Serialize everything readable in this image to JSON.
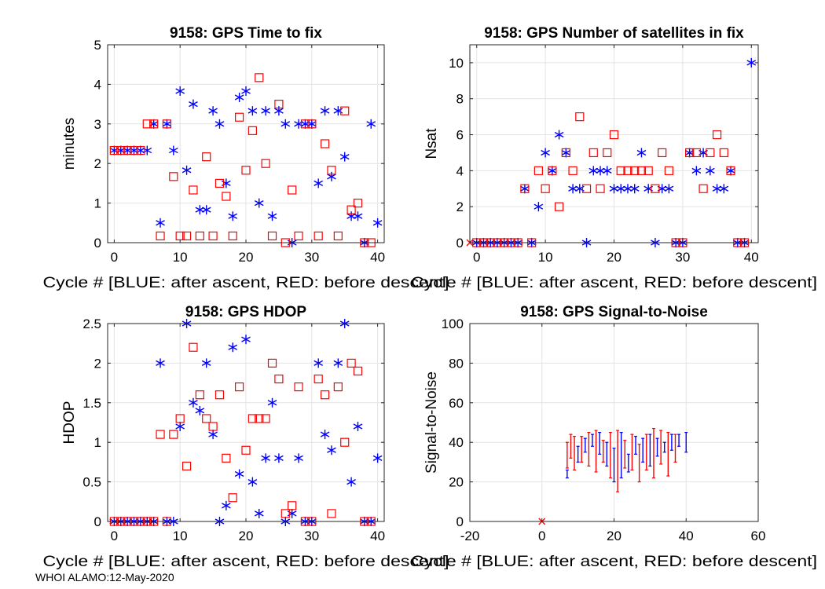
{
  "chart_data": [
    {
      "type": "scatter",
      "title": "9158: GPS Time to fix",
      "xlabel": "Cycle #  [BLUE: after ascent, RED: before descent]",
      "ylabel": "minutes",
      "xlim": [
        -1,
        41
      ],
      "ylim": [
        0,
        5
      ],
      "xticks": [
        0,
        10,
        20,
        30,
        40
      ],
      "yticks": [
        0,
        1,
        2,
        3,
        4,
        5
      ],
      "grid": true,
      "series": [
        {
          "name": "after ascent",
          "color": "#0000ff",
          "marker": "star",
          "x": [
            0,
            1,
            2,
            3,
            4,
            5,
            6,
            7,
            8,
            9,
            10,
            11,
            12,
            13,
            14,
            15,
            16,
            17,
            18,
            19,
            20,
            21,
            22,
            23,
            24,
            25,
            26,
            27,
            28,
            29,
            30,
            31,
            32,
            33,
            34,
            35,
            36,
            37,
            38,
            39,
            40
          ],
          "y": [
            2.33,
            2.33,
            2.33,
            2.33,
            2.33,
            2.33,
            3.0,
            0.5,
            3.0,
            2.33,
            3.83,
            1.83,
            3.5,
            0.83,
            0.83,
            3.33,
            3.0,
            1.5,
            0.67,
            3.67,
            3.83,
            3.33,
            1.0,
            3.33,
            0.67,
            3.33,
            3.0,
            0,
            3.0,
            3.0,
            3.0,
            1.5,
            3.33,
            1.67,
            3.33,
            2.17,
            0.67,
            0.67,
            0,
            3.0,
            0.5
          ]
        },
        {
          "name": "before descent",
          "color": "#ff0000",
          "marker": "square",
          "x": [
            0,
            1,
            2,
            3,
            4,
            5,
            6,
            7,
            8,
            9,
            10,
            11,
            12,
            13,
            14,
            15,
            16,
            17,
            18,
            19,
            20,
            21,
            22,
            23,
            24,
            25,
            26,
            27,
            28,
            29,
            30,
            31,
            32,
            33,
            34,
            35,
            36,
            37,
            38,
            39
          ],
          "y": [
            2.33,
            2.33,
            2.33,
            2.33,
            2.33,
            3.0,
            3.0,
            0.17,
            3.0,
            1.67,
            0.17,
            0.17,
            1.33,
            0.17,
            2.17,
            0.17,
            1.5,
            1.17,
            0.17,
            3.17,
            1.83,
            2.83,
            4.17,
            2.0,
            0.17,
            3.5,
            0,
            1.33,
            0.17,
            3.0,
            3.0,
            0.17,
            2.5,
            1.83,
            0.17,
            3.33,
            0.83,
            1.0,
            0,
            0
          ]
        }
      ]
    },
    {
      "type": "scatter",
      "title": "9158: GPS Number of satellites in fix",
      "xlabel": "Cycle #  [BLUE: after ascent, RED: before descent]",
      "ylabel": "Nsat",
      "xlim": [
        -1,
        41
      ],
      "ylim": [
        0,
        11
      ],
      "xticks": [
        0,
        10,
        20,
        30,
        40
      ],
      "yticks": [
        0,
        2,
        4,
        6,
        8,
        10
      ],
      "grid": true,
      "series": [
        {
          "name": "after ascent",
          "color": "#0000ff",
          "marker": "star",
          "x": [
            0,
            1,
            2,
            3,
            4,
            5,
            6,
            7,
            8,
            9,
            10,
            11,
            12,
            13,
            14,
            15,
            16,
            17,
            18,
            19,
            20,
            21,
            22,
            23,
            24,
            25,
            26,
            27,
            28,
            29,
            30,
            31,
            32,
            33,
            34,
            35,
            36,
            37,
            38,
            39,
            40
          ],
          "y": [
            0,
            0,
            0,
            0,
            0,
            0,
            0,
            3,
            0,
            2,
            5,
            4,
            6,
            5,
            3,
            3,
            0,
            4,
            4,
            4,
            3,
            3,
            3,
            3,
            5,
            3,
            0,
            3,
            3,
            0,
            0,
            5,
            4,
            5,
            4,
            3,
            3,
            4,
            0,
            0,
            10
          ]
        },
        {
          "name": "before descent",
          "color": "#ff0000",
          "marker": "square",
          "x": [
            0,
            1,
            2,
            3,
            4,
            5,
            6,
            7,
            8,
            9,
            10,
            11,
            12,
            13,
            14,
            15,
            16,
            17,
            18,
            19,
            20,
            21,
            22,
            23,
            24,
            25,
            26,
            27,
            28,
            29,
            30,
            31,
            32,
            33,
            34,
            35,
            36,
            37,
            38,
            39
          ],
          "y": [
            0,
            0,
            0,
            0,
            0,
            0,
            0,
            3,
            0,
            4,
            3,
            4,
            2,
            5,
            4,
            7,
            3,
            5,
            3,
            5,
            6,
            4,
            4,
            4,
            4,
            4,
            3,
            5,
            4,
            0,
            0,
            5,
            5,
            3,
            5,
            6,
            5,
            4,
            0,
            0
          ]
        },
        {
          "name": "invalid",
          "color": "#ff0000",
          "marker": "x",
          "x": [
            -1
          ],
          "y": [
            0
          ]
        }
      ]
    },
    {
      "type": "scatter",
      "title": "9158: GPS HDOP",
      "xlabel": "Cycle #  [BLUE: after ascent, RED: before descent]",
      "ylabel": "HDOP",
      "xlim": [
        -1,
        41
      ],
      "ylim": [
        0,
        2.5
      ],
      "xticks": [
        0,
        10,
        20,
        30,
        40
      ],
      "yticks": [
        0,
        0.5,
        1,
        1.5,
        2,
        2.5
      ],
      "yticklabels": [
        "0",
        "0.5",
        "1",
        "1.5",
        "2",
        "2.5"
      ],
      "grid": true,
      "series": [
        {
          "name": "after ascent",
          "color": "#0000ff",
          "marker": "star",
          "x": [
            0,
            1,
            2,
            3,
            4,
            5,
            6,
            7,
            8,
            9,
            10,
            11,
            12,
            13,
            14,
            15,
            16,
            17,
            18,
            19,
            20,
            21,
            22,
            23,
            24,
            25,
            26,
            27,
            28,
            29,
            30,
            31,
            32,
            33,
            34,
            35,
            36,
            37,
            38,
            39,
            40
          ],
          "y": [
            0,
            0,
            0,
            0,
            0,
            0,
            0,
            2.0,
            0,
            0,
            1.2,
            2.5,
            1.5,
            1.4,
            2.0,
            1.1,
            0,
            0.2,
            2.2,
            0.6,
            2.3,
            0.5,
            0.1,
            0.8,
            1.5,
            0.8,
            0,
            0.1,
            0.8,
            0,
            0,
            2.0,
            1.1,
            0.9,
            2.0,
            2.5,
            0.5,
            1.2,
            0,
            0,
            0.8
          ]
        },
        {
          "name": "before descent",
          "color": "#ff0000",
          "marker": "square",
          "x": [
            0,
            1,
            2,
            3,
            4,
            5,
            6,
            7,
            8,
            9,
            10,
            11,
            12,
            13,
            14,
            15,
            16,
            17,
            18,
            19,
            20,
            21,
            22,
            23,
            24,
            25,
            26,
            27,
            28,
            29,
            30,
            31,
            32,
            33,
            34,
            35,
            36,
            37,
            38,
            39
          ],
          "y": [
            0,
            0,
            0,
            0,
            0,
            0,
            0,
            1.1,
            0,
            1.1,
            1.3,
            0.7,
            2.2,
            1.6,
            1.3,
            1.2,
            1.6,
            0.8,
            0.3,
            1.7,
            0.9,
            1.3,
            1.3,
            1.3,
            2.0,
            1.8,
            0.1,
            0.2,
            1.7,
            0,
            0,
            1.8,
            1.6,
            0.1,
            1.7,
            1.0,
            2.0,
            1.9,
            0,
            0
          ]
        }
      ]
    },
    {
      "type": "errorbar",
      "title": "9158: GPS Signal-to-Noise",
      "xlabel": "Cycle #  [BLUE: after ascent, RED: before descent]",
      "ylabel": "Signal-to-Noise",
      "xlim": [
        -20,
        60
      ],
      "ylim": [
        0,
        100
      ],
      "xticks": [
        -20,
        0,
        20,
        40,
        60
      ],
      "yticks": [
        0,
        20,
        40,
        60,
        80,
        100
      ],
      "grid": true,
      "invalid_marker": {
        "x": 0,
        "y": 0,
        "color": "#ff0000"
      },
      "series": [
        {
          "name": "after ascent",
          "color": "#0000ff",
          "x": [
            7,
            10,
            12,
            14,
            16,
            18,
            20,
            22,
            24,
            26,
            28,
            30,
            32,
            34,
            36,
            38,
            40
          ],
          "lo": [
            22,
            30,
            35,
            38,
            34,
            28,
            20,
            22,
            25,
            34,
            30,
            28,
            33,
            35,
            36,
            38,
            35
          ],
          "hi": [
            26,
            38,
            42,
            44,
            45,
            40,
            37,
            45,
            34,
            43,
            42,
            44,
            42,
            40,
            44,
            44,
            45
          ]
        },
        {
          "name": "before descent",
          "color": "#ff0000",
          "x": [
            7,
            8,
            9,
            11,
            13,
            15,
            17,
            19,
            21,
            23,
            25,
            27,
            29,
            31,
            33,
            35,
            37
          ],
          "lo": [
            27,
            32,
            26,
            30,
            28,
            25,
            30,
            22,
            15,
            27,
            26,
            20,
            26,
            22,
            29,
            23,
            30
          ],
          "hi": [
            40,
            44,
            43,
            43,
            45,
            46,
            41,
            45,
            46,
            41,
            44,
            39,
            44,
            47,
            46,
            45,
            44
          ]
        }
      ]
    }
  ],
  "footer": "WHOI ALAMO:12-May-2020"
}
